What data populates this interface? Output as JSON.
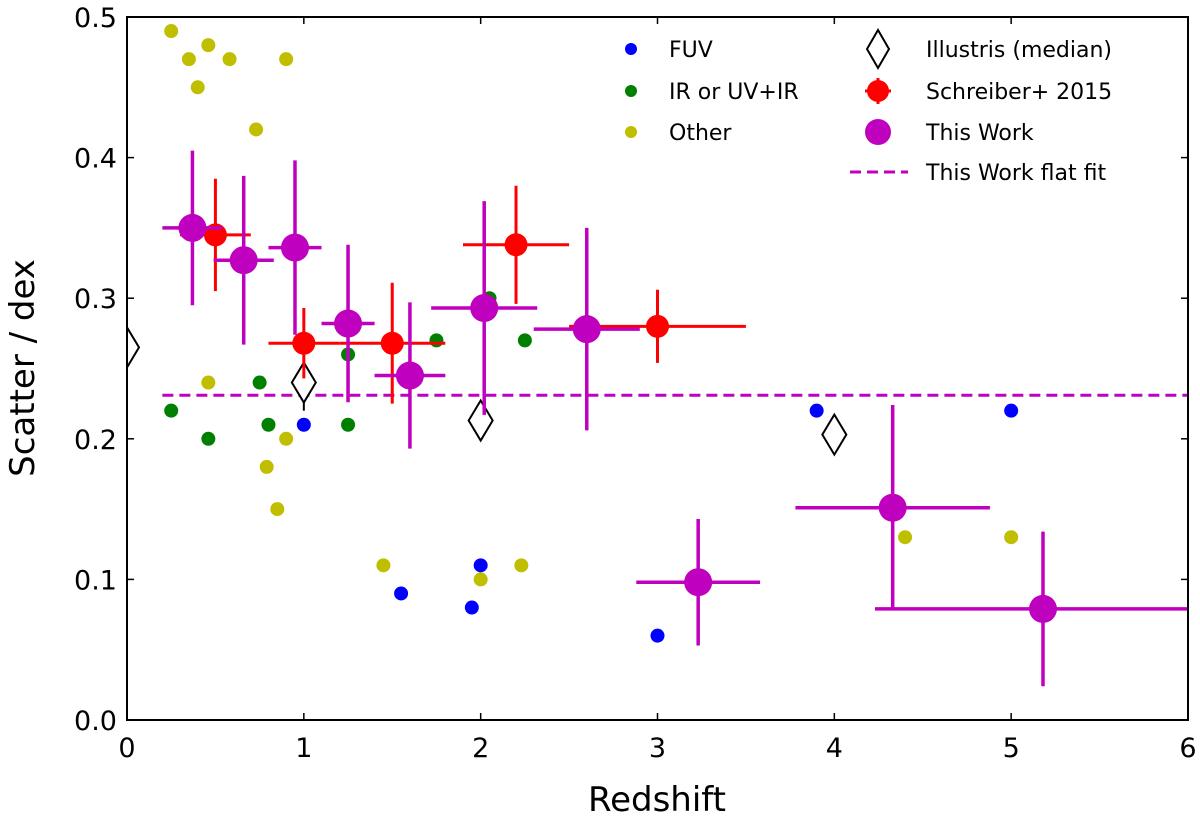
{
  "chart_data": {
    "type": "scatter",
    "xlabel": "Redshift",
    "ylabel": "Scatter / dex",
    "xlim": [
      0,
      6
    ],
    "ylim": [
      0,
      0.5
    ],
    "xticks": [
      "0",
      "1",
      "2",
      "3",
      "4",
      "5",
      "6"
    ],
    "yticks": [
      "0.0",
      "0.1",
      "0.2",
      "0.3",
      "0.4",
      "0.5"
    ],
    "legend_position": "top-right",
    "colors": {
      "fuv": "#0000ff",
      "ir": "#008000",
      "other": "#bfbf00",
      "illustris": "#000000",
      "schreiber": "#ff0000",
      "thiswork": "#bf00bf"
    },
    "series": [
      {
        "name": "FUV",
        "key": "fuv",
        "points": [
          {
            "x": 1.0,
            "y": 0.21
          },
          {
            "x": 1.55,
            "y": 0.09
          },
          {
            "x": 1.95,
            "y": 0.08
          },
          {
            "x": 2.0,
            "y": 0.11
          },
          {
            "x": 3.0,
            "y": 0.06
          },
          {
            "x": 3.9,
            "y": 0.22
          },
          {
            "x": 5.0,
            "y": 0.22
          }
        ]
      },
      {
        "name": "IR or UV+IR",
        "key": "ir",
        "points": [
          {
            "x": 0.25,
            "y": 0.22
          },
          {
            "x": 0.46,
            "y": 0.2
          },
          {
            "x": 0.75,
            "y": 0.24
          },
          {
            "x": 0.8,
            "y": 0.21
          },
          {
            "x": 1.25,
            "y": 0.26
          },
          {
            "x": 1.25,
            "y": 0.21
          },
          {
            "x": 1.75,
            "y": 0.27
          },
          {
            "x": 2.0,
            "y": 0.21
          },
          {
            "x": 2.05,
            "y": 0.3
          },
          {
            "x": 2.25,
            "y": 0.27
          }
        ]
      },
      {
        "name": "Other",
        "key": "other",
        "points": [
          {
            "x": 0.25,
            "y": 0.49
          },
          {
            "x": 0.35,
            "y": 0.47
          },
          {
            "x": 0.4,
            "y": 0.45
          },
          {
            "x": 0.46,
            "y": 0.48
          },
          {
            "x": 0.58,
            "y": 0.47
          },
          {
            "x": 0.73,
            "y": 0.42
          },
          {
            "x": 0.9,
            "y": 0.47
          },
          {
            "x": 0.46,
            "y": 0.24
          },
          {
            "x": 0.79,
            "y": 0.18
          },
          {
            "x": 0.85,
            "y": 0.15
          },
          {
            "x": 0.9,
            "y": 0.2
          },
          {
            "x": 1.45,
            "y": 0.11
          },
          {
            "x": 2.0,
            "y": 0.1
          },
          {
            "x": 2.23,
            "y": 0.11
          },
          {
            "x": 4.4,
            "y": 0.13
          },
          {
            "x": 5.0,
            "y": 0.13
          }
        ]
      },
      {
        "name": "Illustris (median)",
        "key": "illustris",
        "points": [
          {
            "x": 0.0,
            "y": 0.265,
            "yerr": 0.0
          },
          {
            "x": 1.0,
            "y": 0.24,
            "yerr": 0.02
          },
          {
            "x": 2.0,
            "y": 0.213,
            "yerr": 0.01
          },
          {
            "x": 4.0,
            "y": 0.203,
            "yerr": 0.005
          }
        ]
      },
      {
        "name": "Schreiber+ 2015",
        "key": "schreiber",
        "points": [
          {
            "x": 0.5,
            "y": 0.345,
            "xerr": 0.2,
            "yerr": 0.04
          },
          {
            "x": 1.0,
            "y": 0.268,
            "xerr": 0.2,
            "yerr": 0.025
          },
          {
            "x": 1.5,
            "y": 0.268,
            "xerr": 0.3,
            "yerr": 0.043
          },
          {
            "x": 2.2,
            "y": 0.338,
            "xerr": 0.3,
            "yerr": 0.042
          },
          {
            "x": 3.0,
            "y": 0.28,
            "xerr": 0.5,
            "yerr": 0.026
          }
        ]
      },
      {
        "name": "This Work",
        "key": "thiswork",
        "points": [
          {
            "x": 0.37,
            "y": 0.35,
            "xerr": 0.17,
            "yerr": 0.055
          },
          {
            "x": 0.66,
            "y": 0.327,
            "xerr": 0.17,
            "yerr": 0.06
          },
          {
            "x": 0.95,
            "y": 0.336,
            "xerr": 0.15,
            "yerr": 0.062
          },
          {
            "x": 1.25,
            "y": 0.282,
            "xerr": 0.15,
            "yerr": 0.056
          },
          {
            "x": 1.6,
            "y": 0.245,
            "xerr": 0.2,
            "yerr": 0.052
          },
          {
            "x": 2.02,
            "y": 0.293,
            "xerr": 0.3,
            "yerr": 0.076
          },
          {
            "x": 2.6,
            "y": 0.278,
            "xerr": 0.3,
            "yerr": 0.072
          },
          {
            "x": 3.23,
            "y": 0.098,
            "xerr": 0.35,
            "yerr": 0.045
          },
          {
            "x": 4.33,
            "y": 0.151,
            "xerr": 0.55,
            "yerr": 0.073
          },
          {
            "x": 5.18,
            "y": 0.079,
            "xerr": 0.95,
            "yerr": 0.055
          }
        ]
      },
      {
        "name": "This Work flat fit",
        "key": "thiswork",
        "type": "hline",
        "y": 0.231,
        "x_start": 0.2,
        "x_end": 6.0
      }
    ]
  }
}
